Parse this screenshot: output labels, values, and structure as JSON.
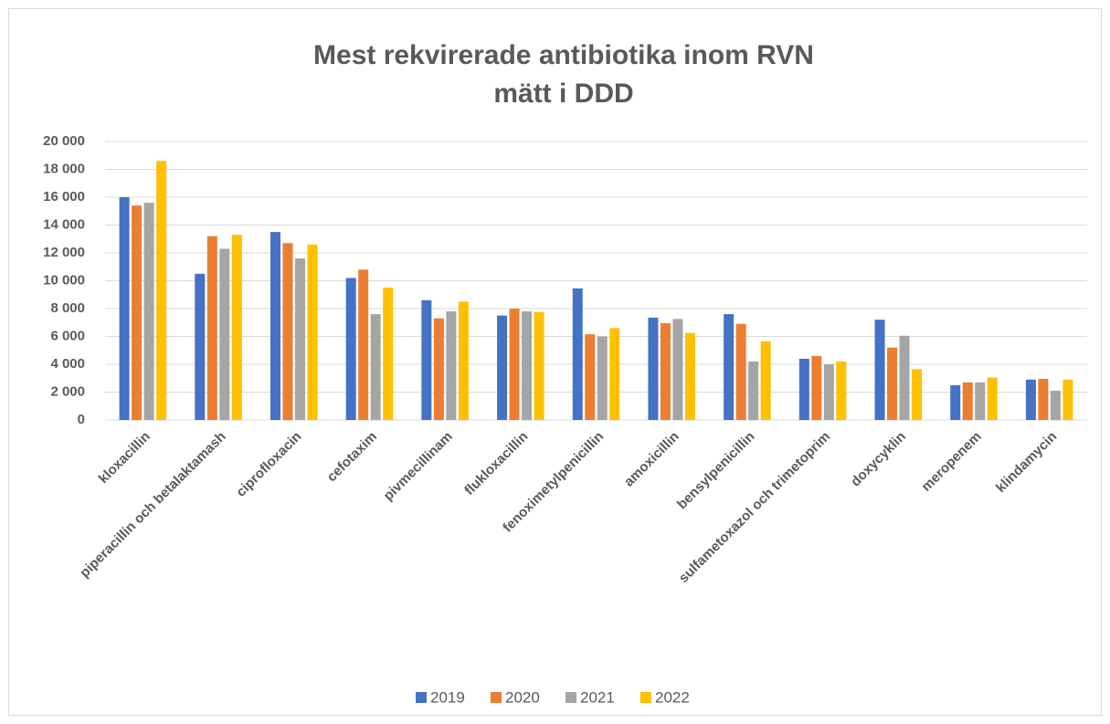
{
  "chart_data": {
    "type": "bar",
    "title": [
      "Mest rekvirerade antibiotika inom RVN",
      "mätt i DDD"
    ],
    "categories": [
      "kloxacillin",
      "piperacillin och betalaktamash",
      "ciprofloxacin",
      "cefotaxim",
      "pivmecillinam",
      "flukloxacillin",
      "fenoximetylpenicillin",
      "amoxicillin",
      "bensylpenicillin",
      "sulfametoxazol och trimetoprim",
      "doxycyklin",
      "meropenem",
      "klindamycin"
    ],
    "series": [
      {
        "name": "2019",
        "color": "#4472c4",
        "values": [
          16000,
          10500,
          13500,
          10200,
          8600,
          7500,
          9450,
          7350,
          7600,
          4400,
          7200,
          2500,
          2900
        ]
      },
      {
        "name": "2020",
        "color": "#ed7d31",
        "values": [
          15400,
          13200,
          12700,
          10800,
          7300,
          8000,
          6150,
          6950,
          6900,
          4600,
          5200,
          2700,
          2950
        ]
      },
      {
        "name": "2021",
        "color": "#a5a5a5",
        "values": [
          15600,
          12300,
          11600,
          7600,
          7800,
          7800,
          6000,
          7250,
          4200,
          4000,
          6050,
          2700,
          2100
        ]
      },
      {
        "name": "2022",
        "color": "#ffc000",
        "values": [
          18600,
          13300,
          12600,
          9500,
          8500,
          7750,
          6600,
          6250,
          5650,
          4200,
          3650,
          3050,
          2900
        ]
      }
    ],
    "ylim": [
      0,
      20000
    ],
    "yticks": [
      0,
      {
        "value": 2000,
        "label": "2 000"
      },
      {
        "value": 4000,
        "label": "4 000"
      },
      {
        "value": 6000,
        "label": "6 000"
      },
      {
        "value": 8000,
        "label": "8 000"
      },
      {
        "value": 10000,
        "label": "10 000"
      },
      {
        "value": 12000,
        "label": "12 000"
      },
      {
        "value": 14000,
        "label": "14 000"
      },
      {
        "value": 16000,
        "label": "16 000"
      },
      {
        "value": 18000,
        "label": "18 000"
      },
      {
        "value": 20000,
        "label": "20 000"
      }
    ],
    "grid": true,
    "legend": "bottom"
  }
}
